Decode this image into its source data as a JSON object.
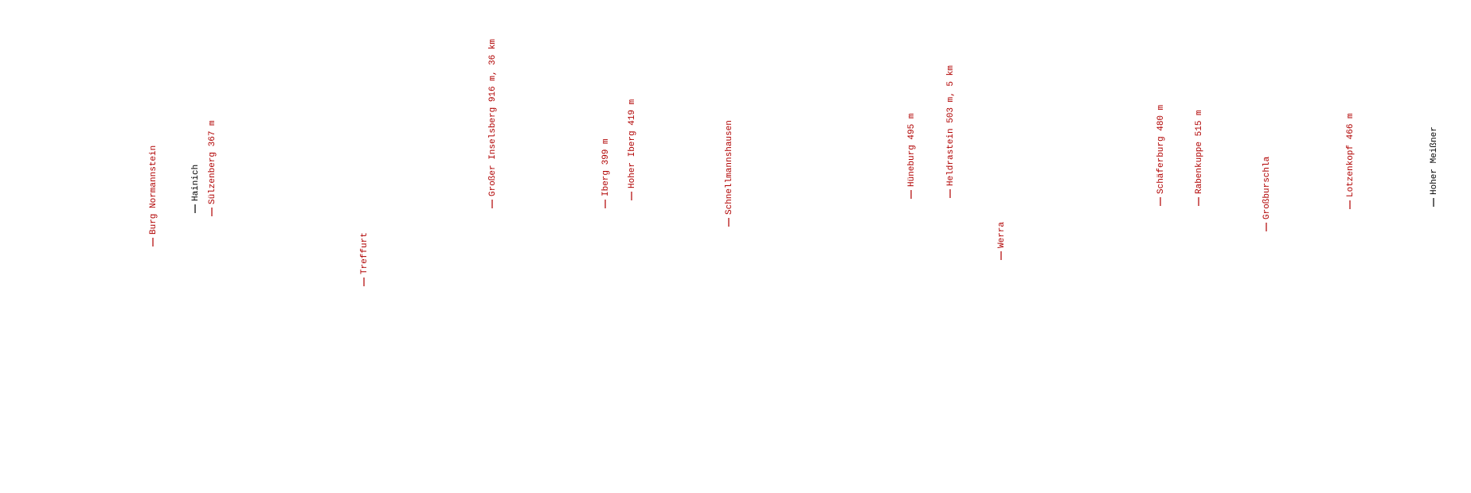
{
  "labels": [
    {
      "text": "Burg Normannstein",
      "color": "#b00000"
    },
    {
      "text": "Hainich",
      "color": "#000000"
    },
    {
      "text": "Sülzenberg 367 m",
      "color": "#b00000"
    },
    {
      "text": "Treffurt",
      "color": "#b00000"
    },
    {
      "text": "Großer Inselsberg 916 m, 36 km",
      "color": "#b00000"
    },
    {
      "text": "Iberg 399 m",
      "color": "#b00000"
    },
    {
      "text": "Hoher Iberg 419 m",
      "color": "#b00000"
    },
    {
      "text": "Schnellmannshausen",
      "color": "#b00000"
    },
    {
      "text": "Hüneburg 495 m",
      "color": "#b00000"
    },
    {
      "text": "Heldrastein 503 m, 5 km",
      "color": "#b00000"
    },
    {
      "text": "Werra",
      "color": "#b00000"
    },
    {
      "text": "Schäferburg 480 m",
      "color": "#b00000"
    },
    {
      "text": "Rabenkuppe 515 m",
      "color": "#b00000"
    },
    {
      "text": "Großburschla",
      "color": "#b00000"
    },
    {
      "text": "Lotzenkopf 466 m",
      "color": "#b00000"
    },
    {
      "text": "Hoher Meißner",
      "color": "#000000"
    }
  ]
}
